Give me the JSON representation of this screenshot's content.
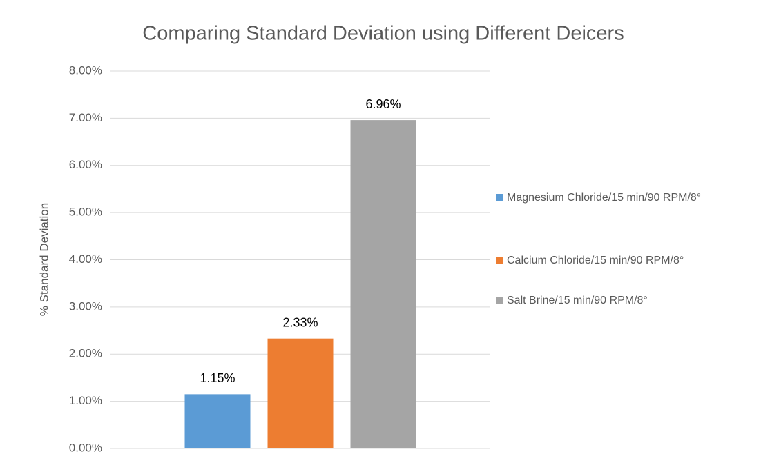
{
  "chart_data": {
    "type": "bar",
    "title": "Comparing Standard Deviation using Different Deicers",
    "y_label": "% Standard Deviation",
    "categories": [
      null
    ],
    "series": [
      {
        "name": "Magnesium Chloride/15 min/90 RPM/8°",
        "color": "#5b9bd5",
        "values": [
          1.15
        ],
        "value_labels": [
          "1.15%"
        ]
      },
      {
        "name": "Calcium Chloride/15 min/90 RPM/8°",
        "color": "#ed7d31",
        "values": [
          2.33
        ],
        "value_labels": [
          "2.33%"
        ]
      },
      {
        "name": "Salt Brine/15 min/90 RPM/8°",
        "color": "#a5a5a5",
        "values": [
          6.96
        ],
        "value_labels": [
          "6.96%"
        ]
      }
    ],
    "ylim": [
      0,
      8
    ],
    "yticks": [
      {
        "value": 0,
        "label": "0.00%"
      },
      {
        "value": 1,
        "label": "1.00%"
      },
      {
        "value": 2,
        "label": "2.00%"
      },
      {
        "value": 3,
        "label": "3.00%"
      },
      {
        "value": 4,
        "label": "4.00%"
      },
      {
        "value": 5,
        "label": "5.00%"
      },
      {
        "value": 6,
        "label": "6.00%"
      },
      {
        "value": 7,
        "label": "7.00%"
      },
      {
        "value": 8,
        "label": "8.00%"
      }
    ],
    "grid": true,
    "legend": "right"
  }
}
